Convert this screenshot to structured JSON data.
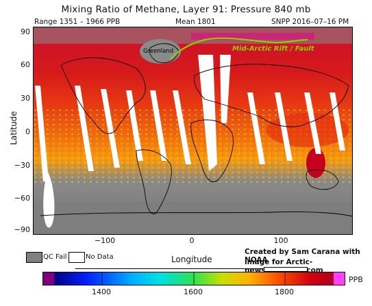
{
  "header": {
    "title": "Mixing Ratio of Methane, Layer 91: Pressure 840 mb",
    "range": "Range 1351 – 1966 PPB",
    "mean": "Mean 1801",
    "source": "SNPP 2016–07–16 PM"
  },
  "axes": {
    "ylabel": "Latitude",
    "xlabel": "Longitude",
    "yticks": [
      "90",
      "60",
      "30",
      "0",
      "−30",
      "−60",
      "−90"
    ],
    "xticks": [
      "−100",
      "0",
      "100"
    ]
  },
  "map_labels": {
    "greenland": "Greenland",
    "rift": "Mid-Arctic Rift / Fault"
  },
  "legend": {
    "qc_fail": "QC Fail",
    "no_data": "No Data",
    "qc_color": "#808080"
  },
  "credits": {
    "line1": "Created by Sam Carana with NOAA",
    "line2": "image for Arctic-news.blogspot.com"
  },
  "colorbar": {
    "ticks": [
      "1400",
      "1600",
      "1800"
    ],
    "unit": "PPB",
    "min": 1351,
    "max": 1966
  },
  "colors": {
    "high": "#d4001a",
    "mid": "#ff8a00",
    "low": "#f5d200",
    "rift_line": "#8ccf00"
  }
}
